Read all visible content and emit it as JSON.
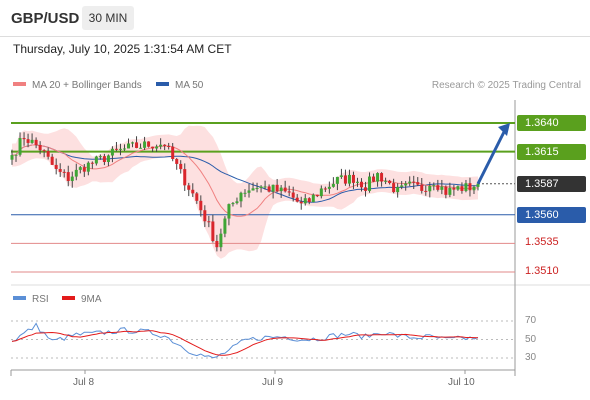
{
  "header": {
    "pair": "GBP/USD",
    "timeframe": "30 MIN"
  },
  "timestamp": "Thursday, July 10, 2025 1:31:54 AM CET",
  "legend": {
    "ma20": {
      "label": "MA 20 + Bollinger Bands",
      "color": "#f08080"
    },
    "ma50": {
      "label": "MA 50",
      "color": "#2a5caa"
    },
    "copyright": "Research © 2025 Trading Central"
  },
  "rsi_legend": {
    "rsi": {
      "label": "RSI",
      "color": "#5b8fd6"
    },
    "ma9": {
      "label": "9MA",
      "color": "#e31b1b"
    }
  },
  "colors": {
    "resistance": "#5aa01e",
    "support": "#2a5caa",
    "support2": "#e28a8a",
    "bull": "#3fa535",
    "bear": "#d9262c",
    "band": "#fde0e0",
    "current": "#333333"
  },
  "chart_data": [
    {
      "type": "candlestick",
      "ylim": [
        1.35,
        1.365
      ],
      "x_ticks": [
        "Jul 8",
        "Jul 9",
        "Jul 10"
      ],
      "levels": [
        {
          "value": 1.364,
          "label": "1.3640",
          "kind": "resistance"
        },
        {
          "value": 1.3615,
          "label": "1.3615",
          "kind": "resistance"
        },
        {
          "value": 1.3587,
          "label": "1.3587",
          "kind": "current"
        },
        {
          "value": 1.356,
          "label": "1.3560",
          "kind": "support"
        },
        {
          "value": 1.3535,
          "label": "1.3535",
          "kind": "support"
        },
        {
          "value": 1.351,
          "label": "1.3510",
          "kind": "support"
        }
      ],
      "forecast": {
        "from": 1.3587,
        "to": 1.364
      },
      "waypoints": [
        [
          0,
          1.3612
        ],
        [
          3,
          1.3628
        ],
        [
          7,
          1.3618
        ],
        [
          11,
          1.3598
        ],
        [
          14,
          1.3592
        ],
        [
          18,
          1.3602
        ],
        [
          22,
          1.3608
        ],
        [
          26,
          1.3615
        ],
        [
          30,
          1.3619
        ],
        [
          34,
          1.3621
        ],
        [
          38,
          1.3622
        ],
        [
          40,
          1.3608
        ],
        [
          43,
          1.359
        ],
        [
          46,
          1.3572
        ],
        [
          49,
          1.355
        ],
        [
          51,
          1.3533
        ],
        [
          52,
          1.3545
        ],
        [
          54,
          1.3565
        ],
        [
          57,
          1.358
        ],
        [
          61,
          1.3585
        ],
        [
          65,
          1.3582
        ],
        [
          69,
          1.3578
        ],
        [
          72,
          1.3568
        ],
        [
          74,
          1.3572
        ],
        [
          77,
          1.3582
        ],
        [
          81,
          1.359
        ],
        [
          85,
          1.3592
        ],
        [
          88,
          1.3585
        ],
        [
          91,
          1.3595
        ],
        [
          93,
          1.359
        ],
        [
          96,
          1.358
        ],
        [
          99,
          1.3585
        ],
        [
          102,
          1.3583
        ],
        [
          105,
          1.359
        ],
        [
          108,
          1.358
        ],
        [
          111,
          1.3583
        ],
        [
          114,
          1.3584
        ],
        [
          116,
          1.3587
        ]
      ]
    },
    {
      "type": "line",
      "name": "RSI",
      "ylim": [
        20,
        80
      ],
      "y_ticks": [
        70,
        50,
        30
      ],
      "waypoints": [
        [
          0,
          48
        ],
        [
          6,
          65
        ],
        [
          10,
          48
        ],
        [
          16,
          55
        ],
        [
          22,
          57
        ],
        [
          28,
          60
        ],
        [
          34,
          58
        ],
        [
          38,
          54
        ],
        [
          44,
          38
        ],
        [
          50,
          29
        ],
        [
          54,
          38
        ],
        [
          58,
          49
        ],
        [
          62,
          52
        ],
        [
          68,
          53
        ],
        [
          72,
          50
        ],
        [
          76,
          51
        ],
        [
          80,
          54
        ],
        [
          84,
          56
        ],
        [
          88,
          53
        ],
        [
          92,
          58
        ],
        [
          96,
          54
        ],
        [
          100,
          52
        ],
        [
          104,
          53
        ],
        [
          108,
          50
        ],
        [
          112,
          51
        ],
        [
          116,
          52
        ]
      ]
    }
  ]
}
